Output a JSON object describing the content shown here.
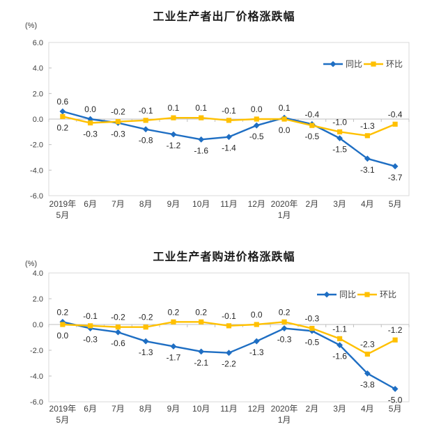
{
  "colors": {
    "yoy_blue": "#1E6EC3",
    "mom_gold": "#FFC000",
    "axis": "#BFBFBF",
    "border": "#D9D9D9",
    "value_label": "#262626",
    "tick_label": "#404040"
  },
  "chart_data": [
    {
      "type": "line",
      "title": "工业生产者出厂价格涨跌幅",
      "unit_label": "(%)",
      "ylim": [
        -6.0,
        6.0
      ],
      "ytick_step": 2.0,
      "grid": false,
      "legend_position": "top-right",
      "categories": [
        [
          "2019年",
          "5月"
        ],
        "6月",
        "7月",
        "8月",
        "9月",
        "10月",
        "11月",
        "12月",
        [
          "2020年",
          "1月"
        ],
        "2月",
        "3月",
        "4月",
        "5月"
      ],
      "series": [
        {
          "name": "同比",
          "marker": "diamond",
          "color": "#1E6EC3",
          "values": [
            0.6,
            0.0,
            -0.3,
            -0.8,
            -1.2,
            -1.6,
            -1.4,
            -0.5,
            0.1,
            -0.4,
            -1.5,
            -3.1,
            -3.7
          ]
        },
        {
          "name": "环比",
          "marker": "square",
          "color": "#FFC000",
          "values": [
            0.2,
            -0.3,
            -0.2,
            -0.1,
            0.1,
            0.1,
            -0.1,
            0.0,
            0.0,
            -0.5,
            -1.0,
            -1.3,
            -0.4
          ]
        }
      ]
    },
    {
      "type": "line",
      "title": "工业生产者购进价格涨跌幅",
      "unit_label": "(%)",
      "ylim": [
        -6.0,
        4.0
      ],
      "ytick_step": 2.0,
      "grid": false,
      "legend_position": "top-right",
      "categories": [
        [
          "2019年",
          "5月"
        ],
        "6月",
        "7月",
        "8月",
        "9月",
        "10月",
        "11月",
        "12月",
        [
          "2020年",
          "1月"
        ],
        "2月",
        "3月",
        "4月",
        "5月"
      ],
      "series": [
        {
          "name": "同比",
          "marker": "diamond",
          "color": "#1E6EC3",
          "values": [
            0.2,
            -0.3,
            -0.6,
            -1.3,
            -1.7,
            -2.1,
            -2.2,
            -1.3,
            -0.3,
            -0.5,
            -1.6,
            -3.8,
            -5.0
          ]
        },
        {
          "name": "环比",
          "marker": "square",
          "color": "#FFC000",
          "values": [
            0.0,
            -0.1,
            -0.2,
            -0.2,
            0.2,
            0.2,
            -0.1,
            0.0,
            0.2,
            -0.3,
            -1.1,
            -2.3,
            -1.2
          ]
        }
      ]
    }
  ]
}
